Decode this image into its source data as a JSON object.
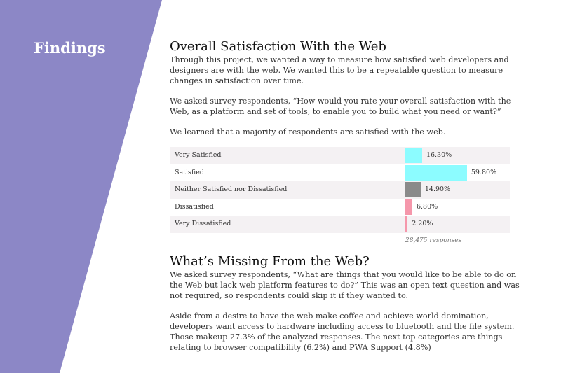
{
  "sidebar": {
    "title": "Findings",
    "color": "#8c87c6"
  },
  "section1": {
    "title": "Overall Satisfaction With the Web",
    "paragraphs": [
      "Through this project, we wanted a way to measure how satisfied web developers and designers are with the web. We wanted this to be a repeatable question to measure changes in satisfaction over time.",
      "We asked survey respondents, “How would you rate your overall satisfaction with the Web, as a platform and set of tools, to enable you to build what you need or want?”",
      "We learned that a majority of respondents are satisfied with the web."
    ]
  },
  "chart_data": {
    "type": "bar",
    "orientation": "horizontal",
    "categories": [
      "Very Satisfied",
      "Satisfied",
      "Neither Satisfied nor Dissatisfied",
      "Dissatisfied",
      "Very Dissatisfied"
    ],
    "values": [
      16.3,
      59.8,
      14.9,
      6.8,
      2.2
    ],
    "labels": [
      "16.30%",
      "59.80%",
      "14.90%",
      "6.80%",
      "2.20%"
    ],
    "colors": [
      "#8cfcff",
      "#8cfcff",
      "#8a8a8a",
      "#f597ab",
      "#f597ab"
    ],
    "xlim": [
      0,
      100
    ],
    "footnote": "28,475 responses"
  },
  "section2": {
    "title": "What’s Missing From the Web?",
    "paragraphs": [
      "We asked survey respondents, “What are things that you would like to be able to do on the Web but lack web platform features to do?” This was an open text question and was not required, so respondents could skip it if they wanted to.",
      "Aside from a desire to have the web make coffee and achieve world domination, developers want access to hardware including access to bluetooth and the file system. Those makeup 27.3% of the analyzed responses. The next top categories are things relating to browser compatibility (6.2%) and PWA Support (4.8%)"
    ]
  }
}
